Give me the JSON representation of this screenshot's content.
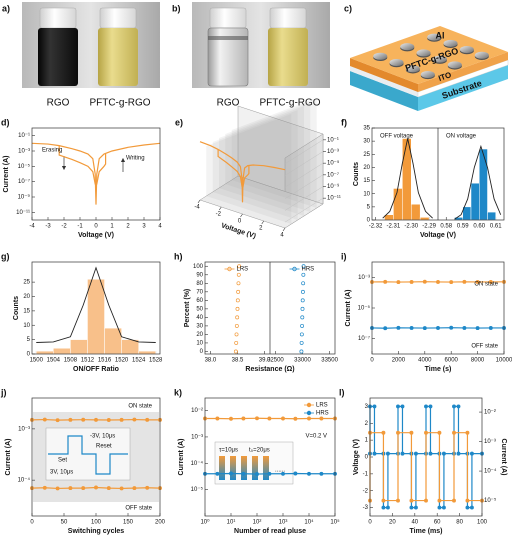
{
  "photos": [
    {
      "label": "a)",
      "captions": [
        "RGO",
        "PFTC-g-RGO"
      ]
    },
    {
      "label": "b)",
      "captions": [
        "RGO",
        "PFTC-g-RGO"
      ]
    }
  ],
  "schematic": {
    "label": "c)",
    "layers": [
      "Al",
      "PFTC-g-RGO",
      "ITO",
      "Substrate"
    ]
  },
  "chart_data": [
    {
      "label": "d)",
      "type": "line",
      "xlabel": "Voltage (V)",
      "ylabel": "Current (A)",
      "xlim": [
        -4,
        4
      ],
      "xticks": [
        -4,
        -3,
        -2,
        -1,
        0,
        1,
        2,
        3,
        4
      ],
      "ylog": true,
      "ylim": [
        1e-12,
        1
      ],
      "yticks": [
        {
          "value": 0.1,
          "label": "10⁻¹"
        },
        {
          "value": 0.001,
          "label": "10⁻³"
        },
        {
          "value": 1e-05,
          "label": "10⁻⁵"
        },
        {
          "value": 1e-07,
          "label": "10⁻⁷"
        },
        {
          "value": 1e-09,
          "label": "10⁻⁹"
        },
        {
          "value": 1e-11,
          "label": "10⁻¹¹"
        }
      ],
      "annotations": [
        "Erasing",
        "Writing"
      ],
      "series": [
        {
          "color": "#f29a3a",
          "x": [
            -4,
            -3,
            -2.3,
            -1.5,
            -1,
            -0.5,
            -0.2,
            -0.05,
            0,
            0.05,
            0.2,
            0.5,
            1,
            2,
            3,
            4
          ],
          "values": [
            0.01,
            0.008,
            0.005,
            0.002,
            0.001,
            0.0004,
            0.0001,
            1e-06,
            1e-10,
            1e-06,
            0.0001,
            0.0004,
            0.001,
            0.003,
            0.006,
            0.01
          ]
        },
        {
          "color": "#f29a3a",
          "x": [
            -2.3,
            -2.3,
            -1.5,
            -1,
            -0.5,
            -0.2,
            -0.05,
            0.05,
            0.2,
            0.5,
            0.6,
            0.6
          ],
          "values": [
            0.005,
            0.0003,
            8e-05,
            3e-05,
            1e-05,
            2e-06,
            5e-08,
            5e-08,
            2e-06,
            1e-05,
            2e-05,
            0.0004
          ]
        }
      ]
    },
    {
      "label": "e)",
      "type": "line3d",
      "xlabel": "Voltage (V)",
      "xlim": [
        -4,
        4
      ],
      "xticks": [
        -4,
        -2,
        0,
        2,
        4
      ],
      "ylog": true,
      "ylim": [
        1e-12,
        1
      ],
      "yticks": [
        {
          "value": 0.1,
          "label": "10⁻¹"
        },
        {
          "value": 0.001,
          "label": "10⁻³"
        },
        {
          "value": 1e-05,
          "label": "10⁻⁵"
        },
        {
          "value": 1e-07,
          "label": "10⁻⁷"
        },
        {
          "value": 1e-09,
          "label": "10⁻⁹"
        },
        {
          "value": 1e-11,
          "label": "10⁻¹¹"
        }
      ],
      "series": [
        {
          "color": "#f29a3a",
          "x": [
            -4,
            -3,
            -2.3,
            -1.5,
            -1,
            -0.5,
            -0.2,
            -0.05,
            0,
            0.05,
            0.2,
            0.5,
            1,
            2,
            3,
            4
          ],
          "values": [
            0.01,
            0.008,
            0.005,
            0.002,
            0.001,
            0.0004,
            0.0001,
            1e-06,
            1e-10,
            1e-06,
            0.0001,
            0.0004,
            0.001,
            0.003,
            0.006,
            0.01
          ]
        },
        {
          "color": "#f29a3a",
          "x": [
            -2.3,
            -2.3,
            -1.5,
            -1,
            -0.5,
            -0.2,
            -0.05,
            0.05,
            0.2,
            0.5,
            0.6,
            0.6
          ],
          "values": [
            0.005,
            0.0003,
            8e-05,
            3e-05,
            1e-05,
            2e-06,
            5e-08,
            5e-08,
            2e-06,
            1e-05,
            2e-05,
            0.0004
          ]
        }
      ]
    },
    {
      "label": "f)",
      "type": "histogram",
      "xlabel": "Voltage (V)",
      "ylabel": "Counts",
      "ylim": [
        0,
        35
      ],
      "yticks": [
        0,
        5,
        10,
        15,
        20,
        25,
        30,
        35
      ],
      "annotations": [
        "OFF voltage",
        "ON voltage"
      ],
      "groups": [
        {
          "xlim": [
            -2.322,
            -2.285
          ],
          "xticks": [
            -2.32,
            -2.31,
            {
              "value": -2.3,
              "label": "-2.30"
            },
            -2.29
          ],
          "color": "#f29a3a",
          "bins": [
            -2.315,
            -2.31,
            -2.305,
            -2.3,
            -2.295,
            -2.29
          ],
          "values": [
            2,
            12,
            31,
            6,
            1
          ],
          "fit": {
            "color": "#222222",
            "x": [
              -2.316,
              -2.312,
              -2.308,
              -2.305,
              -2.302,
              -2.299,
              -2.296,
              -2.292,
              -2.288
            ],
            "values": [
              0.7,
              3.3,
              10.4,
              21.5,
              31,
              21.5,
              10.4,
              3.3,
              0.7
            ]
          }
        },
        {
          "xlim": [
            0.575,
            0.615
          ],
          "xticks": [
            0.58,
            0.59,
            {
              "value": 0.6,
              "label": "0.60"
            },
            0.61
          ],
          "color": "#1e88c8",
          "bins": [
            0.585,
            0.59,
            0.595,
            0.6,
            0.605,
            0.61
          ],
          "values": [
            1,
            5,
            14,
            27,
            3
          ],
          "fit": {
            "color": "#222222",
            "x": [
              0.585,
              0.589,
              0.593,
              0.597,
              0.601,
              0.605,
              0.609,
              0.613
            ],
            "values": [
              0.3,
              2,
              8,
              20,
              28,
              20,
              8,
              2
            ]
          }
        }
      ]
    },
    {
      "label": "g)",
      "type": "histogram",
      "xlabel": "ON/OFF Ratio",
      "ylabel": "Counts",
      "ylim": [
        0,
        32
      ],
      "yticks": [
        0,
        5,
        10,
        15,
        20,
        25
      ],
      "xlim": [
        1499,
        1529
      ],
      "xticks": [
        1500,
        1504,
        1508,
        1512,
        1516,
        1520,
        1524,
        1528
      ],
      "color": "#f8c08a",
      "bins": [
        1500,
        1504,
        1508,
        1512,
        1516,
        1520,
        1524,
        1528
      ],
      "values": [
        1,
        2,
        5,
        26,
        9,
        5,
        1
      ],
      "fit": {
        "color": "#222222",
        "x": [
          1500,
          1504,
          1508,
          1511,
          1514,
          1517,
          1520,
          1524,
          1528
        ],
        "values": [
          4,
          4.2,
          6,
          17,
          30,
          17,
          6,
          4.2,
          4
        ]
      }
    },
    {
      "label": "h)",
      "type": "scatter",
      "xlabel": "Resistance (Ω)",
      "ylabel": "Percent (%)",
      "ylim": [
        -3,
        105
      ],
      "yticks": [
        0,
        10,
        20,
        30,
        40,
        50,
        60,
        70,
        80,
        90,
        100
      ],
      "groups": [
        {
          "xlim": [
            37.9,
            39.1
          ],
          "xticks": [
            {
              "value": 38,
              "label": "38.0"
            },
            38.5,
            {
              "value": 39,
              "label": "39.0"
            }
          ],
          "series": [
            {
              "name": "LRS",
              "color": "#f29a3a",
              "marker": "open-circle",
              "x": [
                38.47,
                38.476,
                38.482,
                38.488,
                38.494,
                38.5,
                38.506,
                38.512,
                38.518,
                38.524,
                38.53
              ],
              "values": [
                0,
                10,
                20,
                30,
                40,
                50,
                60,
                70,
                80,
                90,
                100
              ]
            }
          ]
        },
        {
          "xlim": [
            32400,
            33600
          ],
          "xticks": [
            32500,
            33000,
            33500
          ],
          "series": [
            {
              "name": "HRS",
              "color": "#1e88c8",
              "marker": "open-circle",
              "x": [
                32980,
                32984,
                32988,
                32992,
                32996,
                33000,
                33004,
                33008,
                33012,
                33016,
                33020
              ],
              "values": [
                0,
                10,
                20,
                30,
                40,
                50,
                60,
                70,
                80,
                90,
                100
              ]
            }
          ]
        }
      ]
    },
    {
      "label": "i)",
      "type": "line",
      "xlabel": "Time (s)",
      "ylabel": "Current (A)",
      "xlim": [
        0,
        10000
      ],
      "xticks": [
        0,
        2000,
        4000,
        6000,
        8000,
        10000
      ],
      "ylog": true,
      "ylim": [
        1e-08,
        0.01
      ],
      "yticks": [
        {
          "value": 0.001,
          "label": "10⁻³"
        },
        {
          "value": 1e-05,
          "label": "10⁻⁵"
        },
        {
          "value": 1e-07,
          "label": "10⁻⁷"
        }
      ],
      "annotations": [
        "ON state",
        "OFF state"
      ],
      "series": [
        {
          "color": "#f29a3a",
          "marker": "circle",
          "x": [
            0,
            1000,
            2000,
            3000,
            4000,
            5000,
            6000,
            7000,
            8000,
            9000,
            10000
          ],
          "values": [
            0.0005,
            0.00051,
            0.00049,
            0.0005,
            0.00052,
            0.0005,
            0.00049,
            0.00051,
            0.0005,
            0.0005,
            0.00051
          ]
        },
        {
          "color": "#1e88c8",
          "marker": "circle",
          "x": [
            0,
            1000,
            2000,
            3000,
            4000,
            5000,
            6000,
            7000,
            8000,
            9000,
            10000
          ],
          "values": [
            5e-07,
            4.8e-07,
            5.1e-07,
            5e-07,
            4.9e-07,
            5e-07,
            5.2e-07,
            5e-07,
            4.9e-07,
            5e-07,
            5e-07
          ]
        }
      ]
    },
    {
      "label": "j)",
      "type": "line",
      "xlabel": "Switching cycles",
      "ylabel": "Current (A)",
      "xlim": [
        0,
        200
      ],
      "xticks": [
        0,
        50,
        100,
        150,
        200
      ],
      "ylog": true,
      "ylim": [
        2e-05,
        0.004
      ],
      "yticks": [
        {
          "value": 0.001,
          "label": "10⁻³"
        },
        {
          "value": 0.0001,
          "label": "10⁻⁴"
        }
      ],
      "annotations": [
        "ON state",
        "OFF state",
        "Set",
        "3V, 10μs",
        "-3V, 10μs",
        "Reset"
      ],
      "series": [
        {
          "color": "#f29a3a",
          "marker": "circle",
          "x": [
            0,
            20,
            40,
            60,
            80,
            100,
            120,
            140,
            160,
            180,
            200
          ],
          "values": [
            0.0015,
            0.00152,
            0.00148,
            0.0015,
            0.00151,
            0.0015,
            0.00149,
            0.0015,
            0.00152,
            0.0015,
            0.0015
          ]
        },
        {
          "color": "#f29a3a",
          "marker": "circle",
          "x": [
            0,
            20,
            40,
            60,
            80,
            100,
            120,
            140,
            160,
            180,
            200
          ],
          "values": [
            7e-05,
            7.1e-05,
            6.9e-05,
            7e-05,
            7e-05,
            7.2e-05,
            7e-05,
            6.9e-05,
            7e-05,
            7.1e-05,
            7e-05
          ]
        }
      ]
    },
    {
      "label": "k)",
      "type": "line",
      "xlabel": "Number of read pluse",
      "ylabel": "Current (A)",
      "xlog": true,
      "xlim": [
        1,
        100000
      ],
      "xticks": [
        {
          "value": 1,
          "label": "10⁰"
        },
        {
          "value": 10,
          "label": "10¹"
        },
        {
          "value": 100,
          "label": "10²"
        },
        {
          "value": 1000,
          "label": "10³"
        },
        {
          "value": 10000,
          "label": "10⁴"
        },
        {
          "value": 100000,
          "label": "10⁵"
        }
      ],
      "ylog": true,
      "ylim": [
        1e-06,
        0.03
      ],
      "yticks": [
        {
          "value": 0.01,
          "label": "10⁻²"
        },
        {
          "value": 0.001,
          "label": "10⁻³"
        },
        {
          "value": 0.0001,
          "label": "10⁻⁴"
        },
        {
          "value": 1e-05,
          "label": "10⁻⁵"
        }
      ],
      "annotations": [
        "V=0.2 V",
        "τ=10μs",
        "t₀=20μs",
        "......"
      ],
      "series": [
        {
          "name": "LRS",
          "color": "#f29a3a",
          "marker": "circle",
          "x": [
            1,
            3,
            10,
            30,
            100,
            300,
            1000,
            3000,
            10000,
            30000,
            100000
          ],
          "values": [
            0.005,
            0.005,
            0.0049,
            0.005,
            0.0051,
            0.005,
            0.005,
            0.0049,
            0.005,
            0.005,
            0.005
          ]
        },
        {
          "name": "HRS",
          "color": "#1e88c8",
          "marker": "circle",
          "x": [
            1,
            3,
            10,
            30,
            100,
            300,
            1000,
            3000,
            10000,
            30000,
            100000
          ],
          "values": [
            4e-05,
            4e-05,
            4.1e-05,
            4e-05,
            3.9e-05,
            4e-05,
            4e-05,
            4.1e-05,
            4e-05,
            4e-05,
            4e-05
          ]
        }
      ]
    },
    {
      "label": "l)",
      "type": "line",
      "xlabel": "Time (ms)",
      "ylabel": "Voltage (V)",
      "y2label": "Current (A)",
      "xlim": [
        0,
        100
      ],
      "xticks": [
        0,
        20,
        40,
        60,
        80,
        100
      ],
      "ylim": [
        -3.5,
        3.5
      ],
      "yticks": [
        -3,
        -2,
        -1,
        0,
        1,
        2,
        3
      ],
      "y2log": true,
      "y2lim": [
        3e-06,
        0.03
      ],
      "y2ticks": [
        {
          "value": 0.01,
          "label": "10⁻²"
        },
        {
          "value": 0.001,
          "label": "10⁻³"
        },
        {
          "value": 0.0001,
          "label": "10⁻⁴"
        },
        {
          "value": 1e-05,
          "label": "10⁻⁵"
        }
      ],
      "series": [
        {
          "color": "#1e88c8",
          "marker": "circle",
          "x": [
            0,
            0,
            4,
            4,
            12,
            12,
            16,
            16,
            25,
            25,
            29,
            29,
            37,
            37,
            41,
            41,
            50,
            50,
            54,
            54,
            62,
            62,
            66,
            66,
            75,
            75,
            79,
            79,
            87,
            87,
            91,
            91,
            100
          ],
          "values": [
            0.2,
            3,
            3,
            0.2,
            0.2,
            -3,
            -3,
            0.2,
            0.2,
            3,
            3,
            0.2,
            0.2,
            -3,
            -3,
            0.2,
            0.2,
            3,
            3,
            0.2,
            0.2,
            -3,
            -3,
            0.2,
            0.2,
            3,
            3,
            0.2,
            0.2,
            -3,
            -3,
            0.2,
            0.2
          ]
        },
        {
          "color": "#f29a3a",
          "marker": "circle",
          "axis": "y2",
          "x": [
            0,
            0,
            12,
            12,
            25,
            25,
            37,
            37,
            50,
            50,
            62,
            62,
            75,
            75,
            87,
            87,
            100
          ],
          "values": [
            1e-05,
            0.002,
            0.002,
            1e-05,
            1e-05,
            0.002,
            0.002,
            1e-05,
            1e-05,
            0.002,
            0.002,
            1e-05,
            1e-05,
            0.002,
            0.002,
            1e-05,
            1e-05
          ]
        }
      ]
    }
  ]
}
